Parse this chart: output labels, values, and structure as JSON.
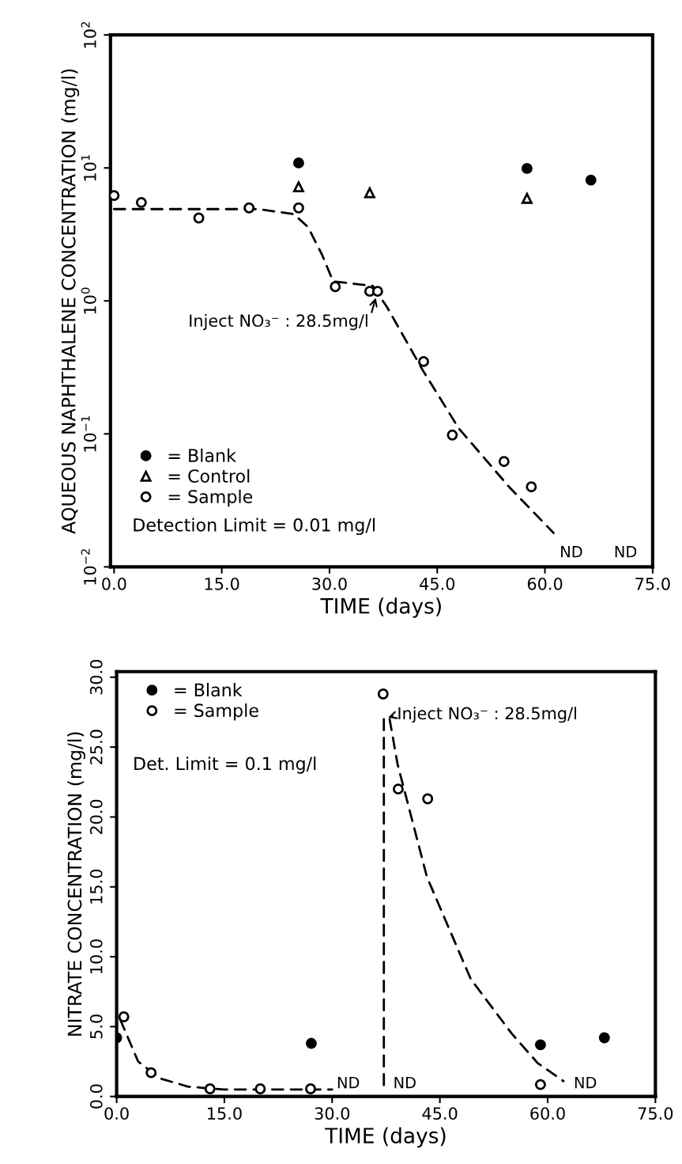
{
  "chart_data": [
    {
      "type": "scatter",
      "xlabel": "TIME (days)",
      "ylabel": "AQUEOUS NAPHTHALENE CONCENTRATION (mg/l)",
      "log": "y",
      "xlim": [
        -0.5,
        75
      ],
      "xticks": [
        {
          "value": 0,
          "label": "0.0"
        },
        {
          "value": 15,
          "label": "15.0"
        },
        {
          "value": 30,
          "label": "30.0"
        },
        {
          "value": 45,
          "label": "45.0"
        },
        {
          "value": 60,
          "label": "60.0"
        },
        {
          "value": 75,
          "label": "75.0"
        }
      ],
      "ylim": [
        0.01,
        100
      ],
      "yticks": [
        {
          "value": 0.01,
          "label": "10$^{−2}$"
        },
        {
          "value": 0.1,
          "label": "10$^{−1}$"
        },
        {
          "value": 1,
          "label": "10$^{0}$"
        },
        {
          "value": 10,
          "label": "10$^{1}$"
        },
        {
          "value": 100,
          "label": "10$^{2}$"
        }
      ],
      "legend": "bottom left",
      "grid": false,
      "series": [
        {
          "name": "= Blank",
          "color": "#000000",
          "marker": "circle",
          "x": [
            25.7,
            57.5,
            66.4
          ],
          "values": [
            10.9,
            9.9,
            8.1
          ]
        },
        {
          "name": "= Control",
          "color": "#000000",
          "marker": "triangle",
          "x": [
            25.7,
            35.6,
            57.5
          ],
          "values": [
            7.2,
            6.5,
            5.9
          ]
        },
        {
          "name": "= Sample",
          "color": "#000000",
          "marker": "circle",
          "x": [
            0,
            3.8,
            11.8,
            18.8,
            25.7,
            30.8,
            35.6,
            36.7,
            43.1,
            47.1,
            54.3,
            58.1
          ],
          "values": [
            6.2,
            5.5,
            4.2,
            5.0,
            5.0,
            1.28,
            1.18,
            1.18,
            0.35,
            0.098,
            0.062,
            0.04
          ]
        },
        {
          "type": "line",
          "color": "#000000",
          "line_style": "dashed",
          "marker": "none",
          "x": [
            0,
            20,
            25,
            27,
            29,
            30.5,
            36,
            38,
            43,
            48,
            55,
            61.2
          ],
          "values": [
            4.9,
            4.9,
            4.5,
            3.6,
            2.2,
            1.4,
            1.3,
            0.9,
            0.3,
            0.11,
            0.04,
            0.018
          ]
        }
      ],
      "annotations": [
        {
          "text": "Inject NO₃⁻ : 28.5mg/l",
          "x": 36.7,
          "y": 1.18
        },
        "Detection Limit = 0.01 mg/l",
        "ND",
        "ND"
      ]
    },
    {
      "type": "scatter",
      "xlabel": "TIME (days)",
      "ylabel": "NITRATE CONCENTRATION (mg/l)",
      "xlim": [
        0,
        75
      ],
      "xticks": [
        {
          "value": 0,
          "label": "0.0"
        },
        {
          "value": 15,
          "label": "15.0"
        },
        {
          "value": 30,
          "label": "30.0"
        },
        {
          "value": 45,
          "label": "45.0"
        },
        {
          "value": 60,
          "label": "60.0"
        },
        {
          "value": 75,
          "label": "75.0"
        }
      ],
      "ylim": [
        0,
        30.4
      ],
      "yticks": [
        {
          "value": 0,
          "label": "0.0"
        },
        {
          "value": 5,
          "label": "5.0"
        },
        {
          "value": 10,
          "label": "10.0"
        },
        {
          "value": 15,
          "label": "15.0"
        },
        {
          "value": 20,
          "label": "20.0"
        },
        {
          "value": 25,
          "label": "25.0"
        },
        {
          "value": 30,
          "label": "30.0"
        }
      ],
      "legend": "top left",
      "grid": false,
      "series": [
        {
          "name": "= Blank",
          "color": "#000000",
          "marker": "circle",
          "x": [
            0,
            27.1,
            59.0,
            67.9
          ],
          "values": [
            4.2,
            3.8,
            3.7,
            4.2
          ]
        },
        {
          "name": "= Sample",
          "color": "#000000",
          "marker": "circle",
          "x": [
            1.0,
            4.8,
            13.0,
            20.0,
            27.0,
            37.1,
            39.2,
            43.3,
            59.0
          ],
          "values": [
            5.7,
            1.7,
            0.55,
            0.55,
            0.55,
            28.8,
            22.0,
            21.3,
            0.85
          ]
        },
        {
          "type": "line",
          "color": "#000000",
          "line_style": "dashed",
          "marker": "none",
          "x": [
            0.5,
            3,
            6,
            10,
            15,
            30
          ],
          "values": [
            5.5,
            2.5,
            1.3,
            0.7,
            0.5,
            0.5
          ]
        },
        {
          "type": "line",
          "color": "#000000",
          "line_style": "dashed",
          "marker": "none",
          "x": [
            37.2,
            37.2
          ],
          "values": [
            27,
            0.5
          ]
        },
        {
          "type": "line",
          "color": "#000000",
          "line_style": "dashed",
          "marker": "none",
          "x": [
            38.0,
            39.1,
            43.2,
            49.3,
            55,
            58.6,
            62.2
          ],
          "values": [
            27,
            23.8,
            15.7,
            8.4,
            4.5,
            2.4,
            1.1
          ]
        }
      ],
      "annotations": [
        {
          "text": "Inject NO₃⁻ : 28.5mg/l",
          "x": 37.2,
          "y": 27
        },
        "Det. Limit = 0.1 mg/l",
        "ND",
        "ND",
        "ND"
      ]
    }
  ]
}
